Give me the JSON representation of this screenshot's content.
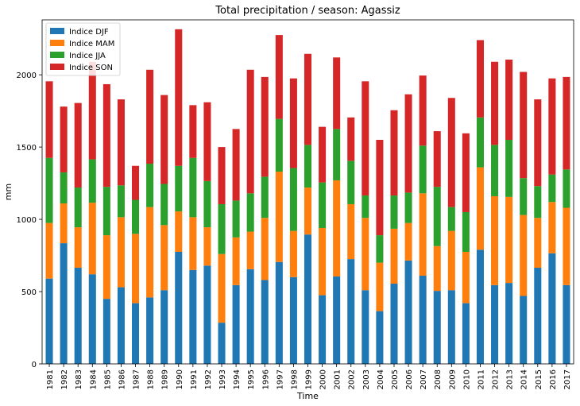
{
  "chart_data": {
    "type": "bar",
    "stacked": true,
    "title": "Total precipitation / season: Agassiz",
    "xlabel": "Time",
    "ylabel": "mm",
    "ylim": [
      0,
      2380
    ],
    "yticks": [
      0,
      500,
      1000,
      1500,
      2000
    ],
    "legend_position": "top-left",
    "categories": [
      "1981",
      "1982",
      "1983",
      "1984",
      "1985",
      "1986",
      "1987",
      "1988",
      "1989",
      "1990",
      "1991",
      "1992",
      "1993",
      "1994",
      "1995",
      "1996",
      "1997",
      "1998",
      "1999",
      "2000",
      "2001",
      "2002",
      "2003",
      "2004",
      "2005",
      "2006",
      "2007",
      "2008",
      "2009",
      "2010",
      "2011",
      "2012",
      "2013",
      "2014",
      "2015",
      "2016",
      "2017"
    ],
    "series": [
      {
        "name": "Indice DJF",
        "color": "#1f77b4",
        "values": [
          590,
          835,
          665,
          620,
          450,
          530,
          420,
          460,
          510,
          775,
          650,
          680,
          285,
          545,
          655,
          580,
          705,
          600,
          895,
          475,
          605,
          725,
          510,
          365,
          555,
          715,
          610,
          505,
          510,
          420,
          790,
          545,
          560,
          470,
          665,
          765,
          545
        ]
      },
      {
        "name": "Indice MAM",
        "color": "#ff7f0e",
        "values": [
          385,
          275,
          280,
          495,
          440,
          485,
          480,
          625,
          450,
          280,
          365,
          265,
          475,
          330,
          260,
          430,
          625,
          320,
          325,
          465,
          665,
          380,
          500,
          335,
          380,
          260,
          570,
          310,
          410,
          355,
          570,
          615,
          595,
          560,
          345,
          355,
          535
        ]
      },
      {
        "name": "Indice JJA",
        "color": "#2ca02c",
        "values": [
          450,
          215,
          275,
          300,
          335,
          220,
          235,
          300,
          285,
          315,
          410,
          320,
          345,
          255,
          265,
          285,
          365,
          435,
          295,
          315,
          355,
          300,
          155,
          190,
          230,
          210,
          330,
          410,
          165,
          275,
          345,
          355,
          395,
          255,
          220,
          190,
          265
        ]
      },
      {
        "name": "Indice SON",
        "color": "#d62728",
        "values": [
          530,
          455,
          585,
          675,
          710,
          595,
          235,
          650,
          615,
          945,
          365,
          545,
          395,
          495,
          855,
          690,
          580,
          620,
          630,
          385,
          495,
          300,
          790,
          660,
          590,
          680,
          485,
          385,
          755,
          545,
          535,
          575,
          555,
          735,
          600,
          665,
          640
        ]
      }
    ]
  }
}
